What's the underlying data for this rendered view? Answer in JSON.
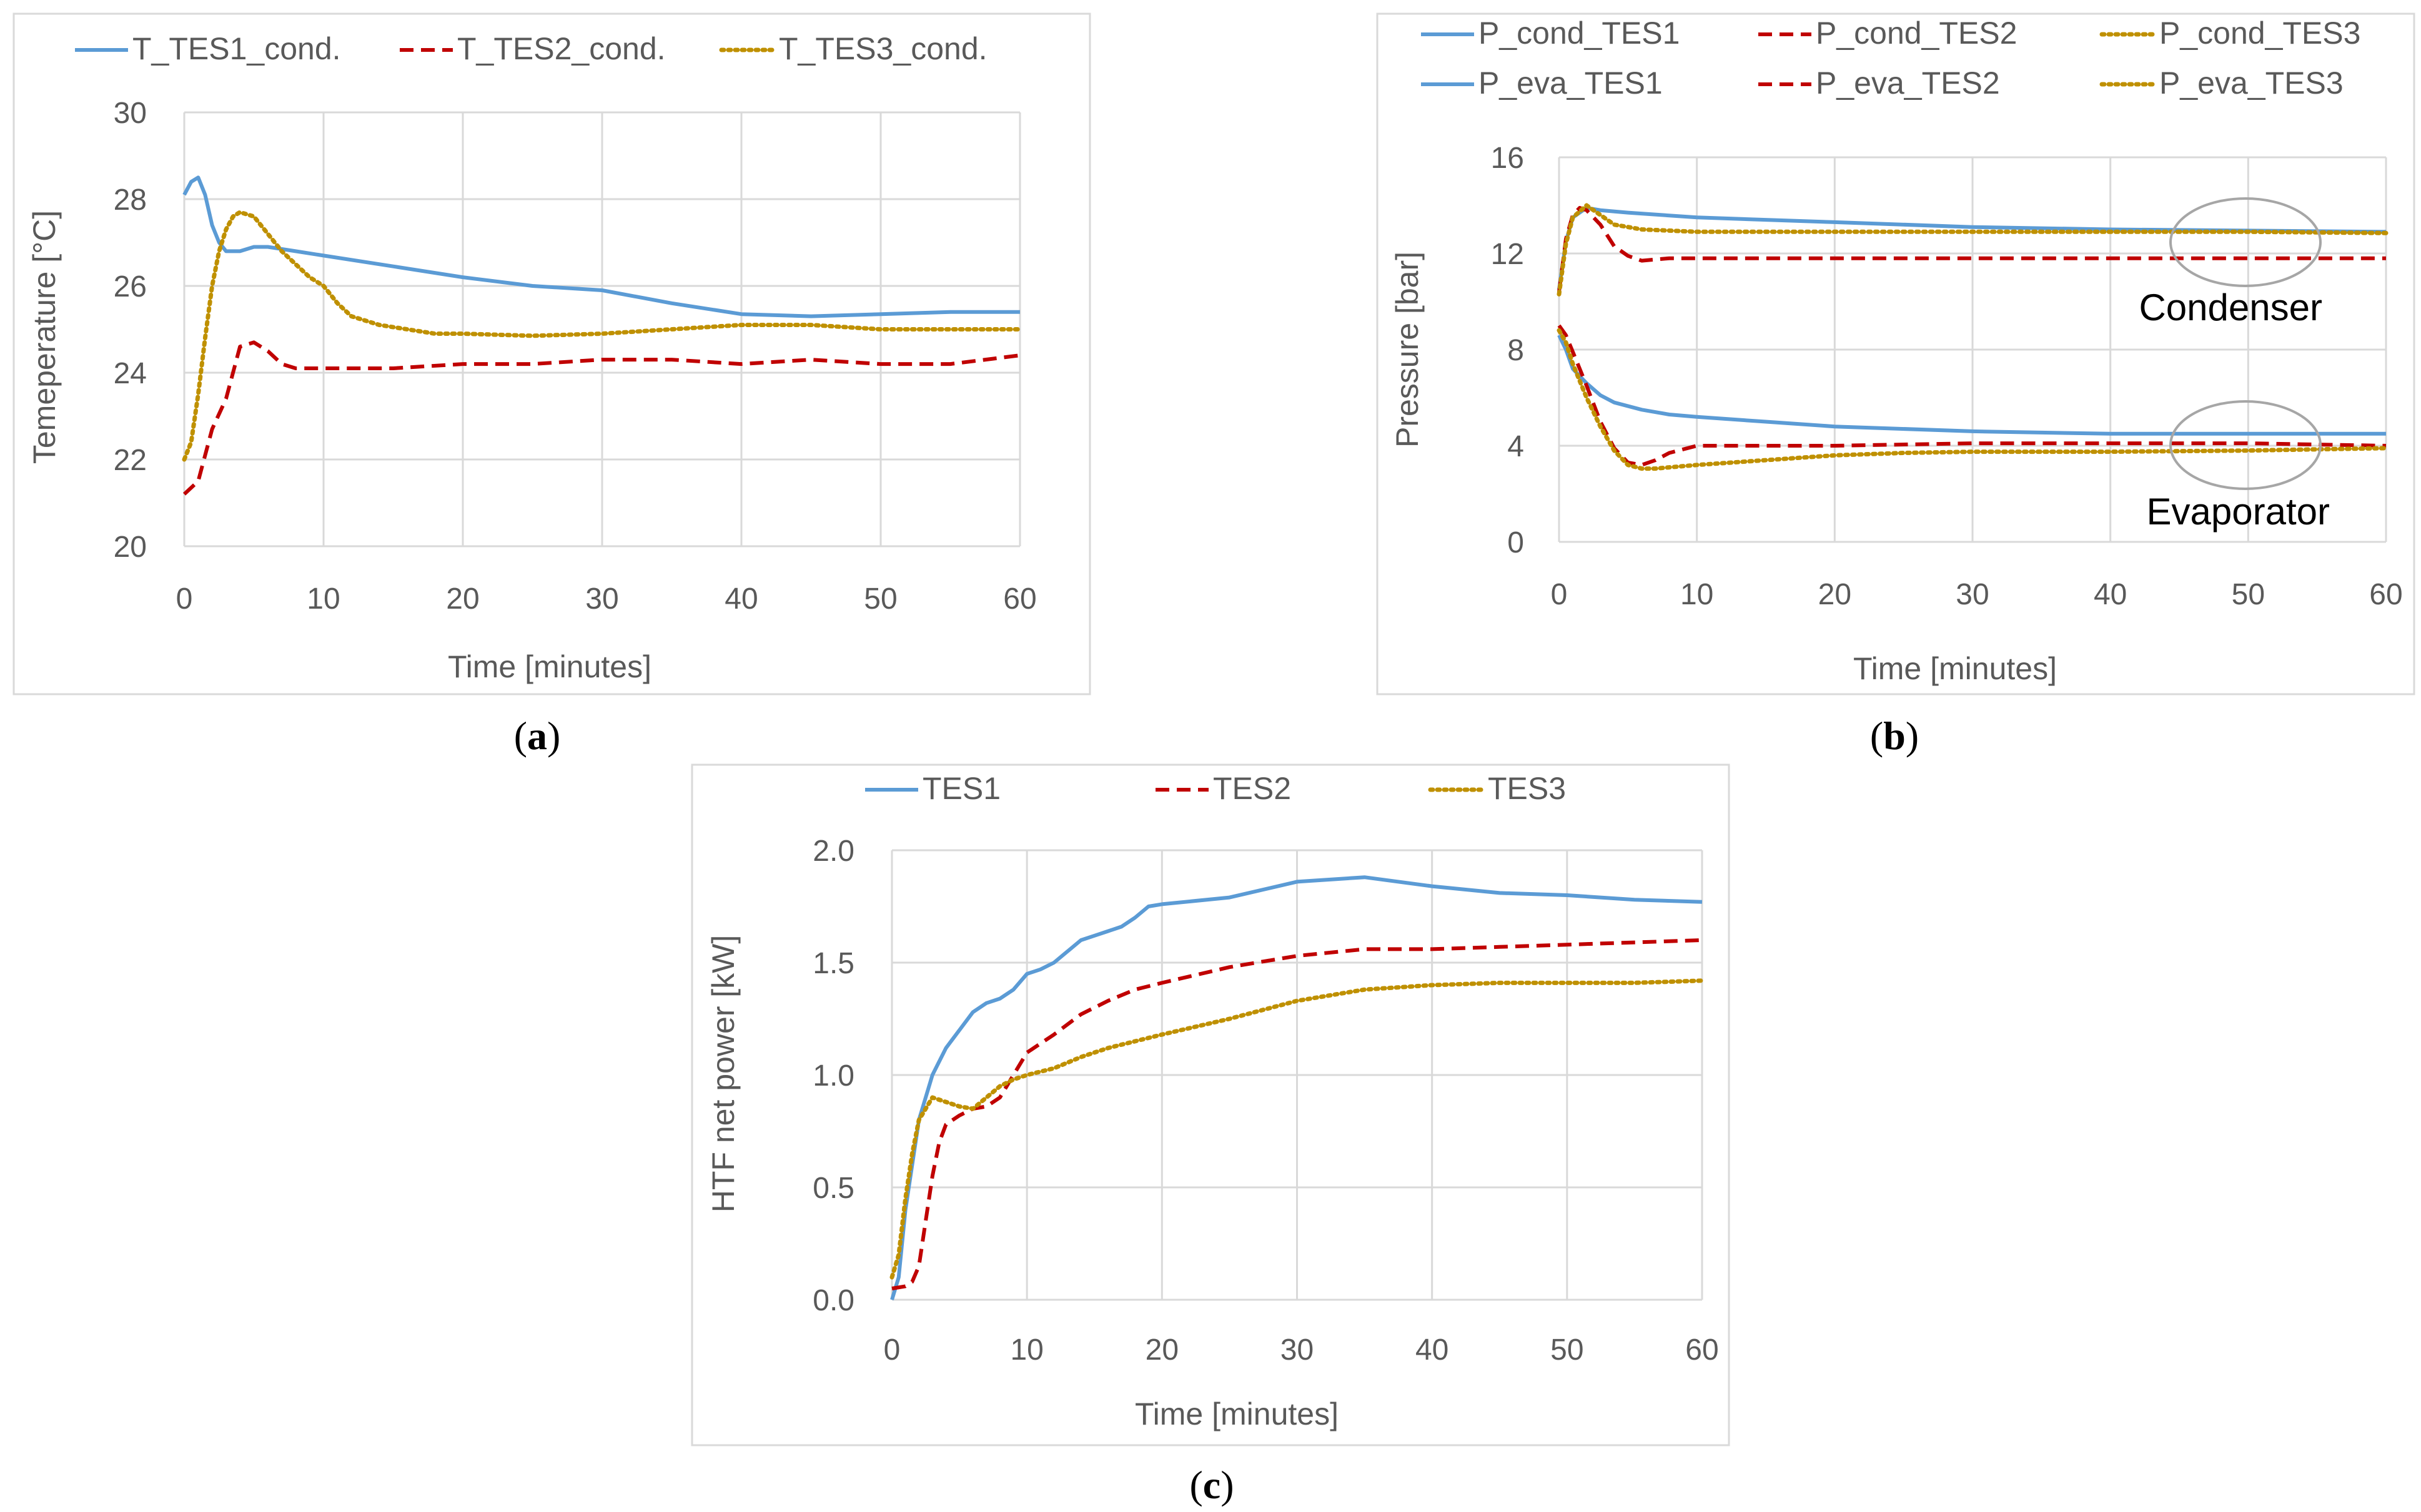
{
  "colors": {
    "tes1": "#5B9BD5",
    "tes2": "#C00000",
    "tes3": "#BF9000",
    "grid": "#D9D9D9",
    "frame": "#D9D9D9",
    "ellipse": "#A6A6A6"
  },
  "chart_data": [
    {
      "id": "a",
      "panel_label": "a",
      "type": "line",
      "xlabel": "Time [minutes]",
      "ylabel": "Temeperature [°C]",
      "xlim": [
        0,
        60
      ],
      "ylim": [
        20,
        30
      ],
      "xticks": [
        0,
        10,
        20,
        30,
        40,
        50,
        60
      ],
      "yticks": [
        20,
        22,
        24,
        26,
        28,
        30
      ],
      "grid": true,
      "legend_position": "top",
      "series": [
        {
          "name": "T_TES1_cond.",
          "style": "solid",
          "color": "tes1",
          "points": [
            [
              0,
              28.1
            ],
            [
              0.5,
              28.4
            ],
            [
              1,
              28.5
            ],
            [
              1.5,
              28.1
            ],
            [
              2,
              27.4
            ],
            [
              2.5,
              27.0
            ],
            [
              3,
              26.8
            ],
            [
              4,
              26.8
            ],
            [
              5,
              26.9
            ],
            [
              6,
              26.9
            ],
            [
              8,
              26.8
            ],
            [
              10,
              26.7
            ],
            [
              15,
              26.45
            ],
            [
              20,
              26.2
            ],
            [
              25,
              26.0
            ],
            [
              30,
              25.9
            ],
            [
              35,
              25.6
            ],
            [
              40,
              25.35
            ],
            [
              45,
              25.3
            ],
            [
              50,
              25.35
            ],
            [
              55,
              25.4
            ],
            [
              60,
              25.4
            ]
          ]
        },
        {
          "name": "T_TES2_cond.",
          "style": "dash",
          "color": "tes2",
          "points": [
            [
              0,
              21.2
            ],
            [
              1,
              21.5
            ],
            [
              2,
              22.7
            ],
            [
              3,
              23.4
            ],
            [
              4,
              24.6
            ],
            [
              5,
              24.7
            ],
            [
              6,
              24.5
            ],
            [
              7,
              24.2
            ],
            [
              8,
              24.1
            ],
            [
              10,
              24.1
            ],
            [
              15,
              24.1
            ],
            [
              20,
              24.2
            ],
            [
              25,
              24.2
            ],
            [
              30,
              24.3
            ],
            [
              35,
              24.3
            ],
            [
              40,
              24.2
            ],
            [
              45,
              24.3
            ],
            [
              50,
              24.2
            ],
            [
              55,
              24.2
            ],
            [
              60,
              24.4
            ]
          ]
        },
        {
          "name": "T_TES3_cond.",
          "style": "dot",
          "color": "tes3",
          "points": [
            [
              0,
              22.0
            ],
            [
              0.5,
              22.4
            ],
            [
              1,
              23.5
            ],
            [
              1.5,
              24.8
            ],
            [
              2,
              26.0
            ],
            [
              2.5,
              26.8
            ],
            [
              3,
              27.3
            ],
            [
              3.5,
              27.6
            ],
            [
              4,
              27.7
            ],
            [
              5,
              27.6
            ],
            [
              6,
              27.2
            ],
            [
              7,
              26.8
            ],
            [
              8,
              26.5
            ],
            [
              9,
              26.2
            ],
            [
              10,
              26.0
            ],
            [
              11,
              25.6
            ],
            [
              12,
              25.3
            ],
            [
              14,
              25.1
            ],
            [
              16,
              25.0
            ],
            [
              18,
              24.9
            ],
            [
              20,
              24.9
            ],
            [
              25,
              24.85
            ],
            [
              30,
              24.9
            ],
            [
              35,
              25.0
            ],
            [
              40,
              25.1
            ],
            [
              45,
              25.1
            ],
            [
              50,
              25.0
            ],
            [
              55,
              25.0
            ],
            [
              60,
              25.0
            ]
          ]
        }
      ]
    },
    {
      "id": "b",
      "panel_label": "b",
      "type": "line",
      "xlabel": "Time [minutes]",
      "ylabel": "Pressure [bar]",
      "xlim": [
        0,
        60
      ],
      "ylim": [
        0,
        16
      ],
      "xticks": [
        0,
        10,
        20,
        30,
        40,
        50,
        60
      ],
      "yticks": [
        0,
        4,
        8,
        12,
        16
      ],
      "grid": true,
      "legend_position": "top",
      "annotations": [
        "Condenser",
        "Evaporator"
      ],
      "series": [
        {
          "name": "P_cond_TES1",
          "style": "solid",
          "color": "tes1",
          "points": [
            [
              0,
              10.5
            ],
            [
              0.5,
              12.5
            ],
            [
              1,
              13.5
            ],
            [
              2,
              13.9
            ],
            [
              3,
              13.8
            ],
            [
              5,
              13.7
            ],
            [
              10,
              13.5
            ],
            [
              20,
              13.3
            ],
            [
              30,
              13.1
            ],
            [
              40,
              13.0
            ],
            [
              50,
              12.95
            ],
            [
              60,
              12.9
            ]
          ]
        },
        {
          "name": "P_cond_TES2",
          "style": "dash",
          "color": "tes2",
          "points": [
            [
              0,
              10.4
            ],
            [
              0.5,
              12.6
            ],
            [
              1,
              13.6
            ],
            [
              1.5,
              13.9
            ],
            [
              2,
              13.8
            ],
            [
              3,
              13.2
            ],
            [
              4,
              12.3
            ],
            [
              5,
              11.9
            ],
            [
              6,
              11.7
            ],
            [
              8,
              11.8
            ],
            [
              10,
              11.8
            ],
            [
              20,
              11.8
            ],
            [
              30,
              11.8
            ],
            [
              40,
              11.8
            ],
            [
              50,
              11.8
            ],
            [
              60,
              11.8
            ]
          ]
        },
        {
          "name": "P_cond_TES3",
          "style": "dot",
          "color": "tes3",
          "points": [
            [
              0,
              10.3
            ],
            [
              0.5,
              12.4
            ],
            [
              1,
              13.5
            ],
            [
              2,
              14.0
            ],
            [
              3,
              13.6
            ],
            [
              4,
              13.2
            ],
            [
              6,
              13.0
            ],
            [
              10,
              12.9
            ],
            [
              20,
              12.9
            ],
            [
              30,
              12.9
            ],
            [
              40,
              12.9
            ],
            [
              50,
              12.9
            ],
            [
              60,
              12.85
            ]
          ]
        },
        {
          "name": "P_eva_TES1",
          "style": "solid",
          "color": "tes1",
          "points": [
            [
              0,
              8.6
            ],
            [
              0.5,
              8.0
            ],
            [
              1,
              7.2
            ],
            [
              2,
              6.6
            ],
            [
              3,
              6.1
            ],
            [
              4,
              5.8
            ],
            [
              6,
              5.5
            ],
            [
              8,
              5.3
            ],
            [
              10,
              5.2
            ],
            [
              15,
              5.0
            ],
            [
              20,
              4.8
            ],
            [
              30,
              4.6
            ],
            [
              40,
              4.5
            ],
            [
              50,
              4.5
            ],
            [
              60,
              4.5
            ]
          ]
        },
        {
          "name": "P_eva_TES2",
          "style": "dash",
          "color": "tes2",
          "points": [
            [
              0,
              9.0
            ],
            [
              0.5,
              8.6
            ],
            [
              1,
              7.9
            ],
            [
              2,
              6.5
            ],
            [
              3,
              5.0
            ],
            [
              4,
              3.9
            ],
            [
              5,
              3.3
            ],
            [
              6,
              3.2
            ],
            [
              7,
              3.4
            ],
            [
              8,
              3.7
            ],
            [
              10,
              4.0
            ],
            [
              15,
              4.0
            ],
            [
              20,
              4.0
            ],
            [
              30,
              4.1
            ],
            [
              40,
              4.1
            ],
            [
              50,
              4.1
            ],
            [
              60,
              4.0
            ]
          ]
        },
        {
          "name": "P_eva_TES3",
          "style": "dot",
          "color": "tes3",
          "points": [
            [
              0,
              8.8
            ],
            [
              0.5,
              8.3
            ],
            [
              1,
              7.4
            ],
            [
              2,
              6.0
            ],
            [
              3,
              4.8
            ],
            [
              4,
              3.8
            ],
            [
              5,
              3.2
            ],
            [
              6,
              3.05
            ],
            [
              7,
              3.05
            ],
            [
              8,
              3.1
            ],
            [
              10,
              3.2
            ],
            [
              15,
              3.4
            ],
            [
              20,
              3.6
            ],
            [
              25,
              3.7
            ],
            [
              30,
              3.75
            ],
            [
              40,
              3.75
            ],
            [
              50,
              3.8
            ],
            [
              60,
              3.9
            ]
          ]
        }
      ]
    },
    {
      "id": "c",
      "panel_label": "c",
      "type": "line",
      "xlabel": "Time [minutes]",
      "ylabel": "HTF net power [kW]",
      "xlim": [
        0,
        60
      ],
      "ylim": [
        0,
        2
      ],
      "xticks": [
        0,
        10,
        20,
        30,
        40,
        50,
        60
      ],
      "yticks": [
        0.0,
        0.5,
        1.0,
        1.5,
        2.0
      ],
      "ytick_labels": [
        "0.0",
        "0.5",
        "1.0",
        "1.5",
        "2.0"
      ],
      "grid": true,
      "legend_position": "top",
      "series": [
        {
          "name": "TES1",
          "style": "solid",
          "color": "tes1",
          "points": [
            [
              0,
              0.0
            ],
            [
              0.5,
              0.1
            ],
            [
              1,
              0.4
            ],
            [
              1.5,
              0.6
            ],
            [
              2,
              0.8
            ],
            [
              3,
              1.0
            ],
            [
              4,
              1.12
            ],
            [
              5,
              1.2
            ],
            [
              6,
              1.28
            ],
            [
              7,
              1.32
            ],
            [
              8,
              1.34
            ],
            [
              9,
              1.38
            ],
            [
              10,
              1.45
            ],
            [
              11,
              1.47
            ],
            [
              12,
              1.5
            ],
            [
              13,
              1.55
            ],
            [
              14,
              1.6
            ],
            [
              15,
              1.62
            ],
            [
              16,
              1.64
            ],
            [
              17,
              1.66
            ],
            [
              18,
              1.7
            ],
            [
              19,
              1.75
            ],
            [
              20,
              1.76
            ],
            [
              25,
              1.79
            ],
            [
              30,
              1.86
            ],
            [
              35,
              1.88
            ],
            [
              40,
              1.84
            ],
            [
              45,
              1.81
            ],
            [
              50,
              1.8
            ],
            [
              55,
              1.78
            ],
            [
              60,
              1.77
            ]
          ]
        },
        {
          "name": "TES2",
          "style": "dash",
          "color": "tes2",
          "points": [
            [
              0,
              0.05
            ],
            [
              1,
              0.06
            ],
            [
              1.5,
              0.08
            ],
            [
              2,
              0.15
            ],
            [
              2.5,
              0.35
            ],
            [
              3,
              0.55
            ],
            [
              3.5,
              0.7
            ],
            [
              4,
              0.78
            ],
            [
              5,
              0.82
            ],
            [
              6,
              0.85
            ],
            [
              7,
              0.86
            ],
            [
              8,
              0.9
            ],
            [
              9,
              1.0
            ],
            [
              10,
              1.1
            ],
            [
              12,
              1.18
            ],
            [
              14,
              1.27
            ],
            [
              16,
              1.33
            ],
            [
              18,
              1.38
            ],
            [
              20,
              1.41
            ],
            [
              25,
              1.48
            ],
            [
              30,
              1.53
            ],
            [
              35,
              1.56
            ],
            [
              40,
              1.56
            ],
            [
              45,
              1.57
            ],
            [
              50,
              1.58
            ],
            [
              55,
              1.59
            ],
            [
              60,
              1.6
            ]
          ]
        },
        {
          "name": "TES3",
          "style": "dot",
          "color": "tes3",
          "points": [
            [
              0,
              0.1
            ],
            [
              0.5,
              0.2
            ],
            [
              1,
              0.45
            ],
            [
              1.5,
              0.65
            ],
            [
              2,
              0.8
            ],
            [
              3,
              0.9
            ],
            [
              4,
              0.88
            ],
            [
              5,
              0.86
            ],
            [
              6,
              0.85
            ],
            [
              7,
              0.9
            ],
            [
              8,
              0.95
            ],
            [
              9,
              0.98
            ],
            [
              10,
              1.0
            ],
            [
              12,
              1.03
            ],
            [
              14,
              1.08
            ],
            [
              16,
              1.12
            ],
            [
              18,
              1.15
            ],
            [
              20,
              1.18
            ],
            [
              25,
              1.25
            ],
            [
              30,
              1.33
            ],
            [
              35,
              1.38
            ],
            [
              40,
              1.4
            ],
            [
              45,
              1.41
            ],
            [
              50,
              1.41
            ],
            [
              55,
              1.41
            ],
            [
              60,
              1.42
            ]
          ]
        }
      ]
    }
  ]
}
